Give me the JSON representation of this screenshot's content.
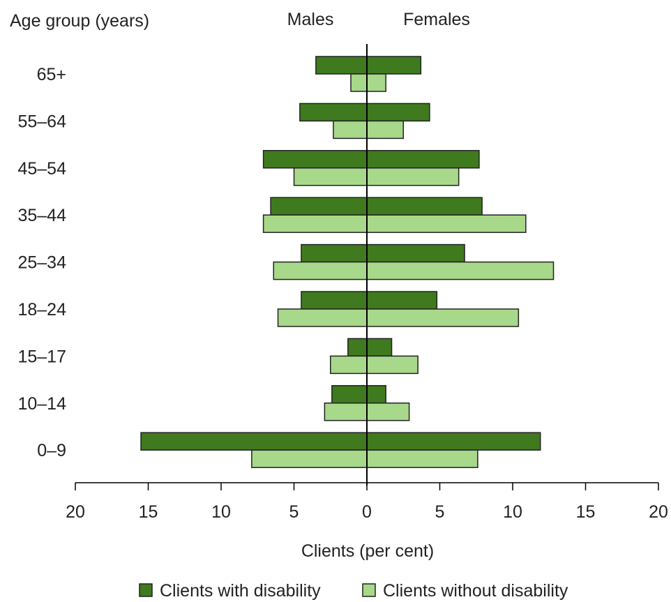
{
  "chart_data": {
    "type": "bar",
    "orientation": "horizontal",
    "layout": "population-pyramid",
    "y_axis_title": "Age group (years)",
    "left_group_label": "Males",
    "right_group_label": "Females",
    "xlabel": "Clients (per cent)",
    "xlim": [
      -20,
      20
    ],
    "x_ticks": [
      -20,
      -15,
      -10,
      -5,
      0,
      5,
      10,
      15,
      20
    ],
    "x_tick_labels": [
      "20",
      "15",
      "10",
      "5",
      "0",
      "5",
      "10",
      "15",
      "20"
    ],
    "categories": [
      "65+",
      "55–64",
      "45–54",
      "35–44",
      "25–34",
      "18–24",
      "15–17",
      "10–14",
      "0–9"
    ],
    "series": [
      {
        "name": "Clients with disability",
        "color": "#3f7a1f",
        "males": [
          3.5,
          4.6,
          7.1,
          6.6,
          4.5,
          4.5,
          1.3,
          2.4,
          15.5
        ],
        "females": [
          3.7,
          4.3,
          7.7,
          7.9,
          6.7,
          4.8,
          1.7,
          1.3,
          11.9
        ]
      },
      {
        "name": "Clients without disability",
        "color": "#a8d88a",
        "males": [
          1.1,
          2.3,
          5.0,
          7.1,
          6.4,
          6.1,
          2.5,
          2.9,
          7.9
        ],
        "females": [
          1.3,
          2.5,
          6.3,
          10.9,
          12.8,
          10.4,
          3.5,
          2.9,
          7.6
        ]
      }
    ],
    "legend_position": "bottom",
    "grid": false
  }
}
